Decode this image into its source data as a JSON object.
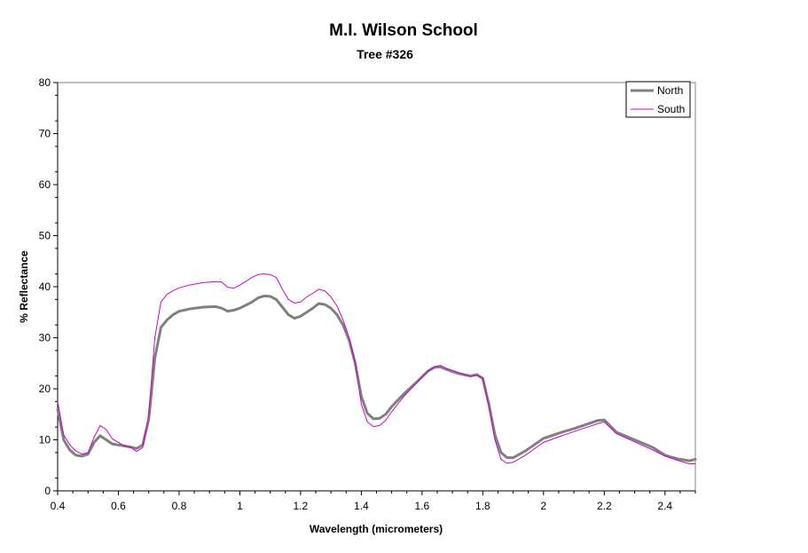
{
  "chart_data": {
    "type": "line",
    "title": "M.I. Wilson School",
    "subtitle": "Tree #326",
    "xlabel": "Wavelength (micrometers)",
    "ylabel": "% Reflectance",
    "xlim": [
      0.4,
      2.5
    ],
    "ylim": [
      0,
      80
    ],
    "x_ticks": [
      "0.4",
      "0.6",
      "0.8",
      "1",
      "1.2",
      "1.4",
      "1.6",
      "1.8",
      "2",
      "2.2",
      "2.4"
    ],
    "x_tick_values": [
      0.4,
      0.6,
      0.8,
      1.0,
      1.2,
      1.4,
      1.6,
      1.8,
      2.0,
      2.2,
      2.4
    ],
    "y_ticks": [
      "0",
      "10",
      "20",
      "30",
      "40",
      "50",
      "60",
      "70",
      "80"
    ],
    "y_tick_values": [
      0,
      10,
      20,
      30,
      40,
      50,
      60,
      70,
      80
    ],
    "grid": false,
    "legend_position": "top-right",
    "series": [
      {
        "name": "North",
        "color": "#808080",
        "x": [
          0.4,
          0.42,
          0.44,
          0.46,
          0.48,
          0.5,
          0.52,
          0.54,
          0.56,
          0.58,
          0.6,
          0.62,
          0.64,
          0.66,
          0.68,
          0.7,
          0.72,
          0.74,
          0.76,
          0.78,
          0.8,
          0.84,
          0.88,
          0.92,
          0.94,
          0.96,
          0.98,
          1.0,
          1.04,
          1.06,
          1.08,
          1.1,
          1.12,
          1.14,
          1.16,
          1.18,
          1.2,
          1.22,
          1.24,
          1.26,
          1.28,
          1.3,
          1.32,
          1.34,
          1.36,
          1.38,
          1.4,
          1.42,
          1.44,
          1.46,
          1.48,
          1.5,
          1.54,
          1.58,
          1.62,
          1.64,
          1.66,
          1.68,
          1.72,
          1.76,
          1.78,
          1.8,
          1.82,
          1.84,
          1.86,
          1.88,
          1.9,
          1.94,
          2.0,
          2.06,
          2.1,
          2.14,
          2.18,
          2.2,
          2.24,
          2.3,
          2.36,
          2.4,
          2.44,
          2.48,
          2.5
        ],
        "y": [
          16,
          10,
          8,
          7,
          6.8,
          7.2,
          9.5,
          10.8,
          10,
          9.2,
          9,
          8.8,
          8.6,
          8.3,
          9,
          14,
          26,
          32,
          33.5,
          34.5,
          35.2,
          35.7,
          36,
          36.1,
          35.8,
          35.2,
          35.4,
          35.8,
          37,
          37.8,
          38.2,
          38.1,
          37.5,
          36,
          34.5,
          33.8,
          34.2,
          35,
          35.8,
          36.7,
          36.5,
          35.8,
          34.5,
          32.5,
          29.5,
          25,
          18.5,
          15.2,
          14.1,
          14.2,
          15,
          16.5,
          19,
          21.2,
          23.5,
          24.2,
          24.3,
          23.8,
          23,
          22.5,
          22.8,
          22,
          17,
          11,
          7.5,
          6.5,
          6.5,
          7.8,
          10.3,
          11.5,
          12.2,
          13,
          13.8,
          13.9,
          11.5,
          10,
          8.5,
          7,
          6.3,
          5.9,
          6.2
        ]
      },
      {
        "name": "South",
        "color": "#cc00cc",
        "x": [
          0.4,
          0.42,
          0.44,
          0.46,
          0.48,
          0.5,
          0.52,
          0.54,
          0.56,
          0.58,
          0.6,
          0.62,
          0.64,
          0.66,
          0.68,
          0.7,
          0.72,
          0.74,
          0.76,
          0.78,
          0.8,
          0.84,
          0.88,
          0.92,
          0.94,
          0.96,
          0.98,
          1.0,
          1.04,
          1.06,
          1.08,
          1.1,
          1.12,
          1.14,
          1.16,
          1.18,
          1.2,
          1.22,
          1.24,
          1.26,
          1.28,
          1.3,
          1.32,
          1.34,
          1.36,
          1.38,
          1.4,
          1.42,
          1.44,
          1.46,
          1.48,
          1.5,
          1.54,
          1.58,
          1.62,
          1.64,
          1.66,
          1.68,
          1.72,
          1.76,
          1.78,
          1.8,
          1.82,
          1.84,
          1.86,
          1.88,
          1.9,
          1.94,
          2.0,
          2.06,
          2.1,
          2.14,
          2.18,
          2.2,
          2.24,
          2.3,
          2.36,
          2.4,
          2.44,
          2.48,
          2.5
        ],
        "y": [
          17.5,
          11,
          9,
          7.8,
          7.2,
          7.5,
          10.5,
          12.8,
          12,
          10.2,
          9.5,
          8.8,
          8.5,
          7.7,
          8.5,
          15,
          30,
          37,
          38.5,
          39.2,
          39.8,
          40.4,
          40.8,
          41,
          40.9,
          39.9,
          39.7,
          40.3,
          41.8,
          42.4,
          42.5,
          42.4,
          41.8,
          39.5,
          37.5,
          36.8,
          37,
          38,
          38.7,
          39.5,
          39.2,
          38,
          36.2,
          33.5,
          30,
          25,
          17,
          13.5,
          12.6,
          12.8,
          13.8,
          15.5,
          18.5,
          21,
          23.5,
          24.3,
          24.6,
          24,
          23.2,
          22.4,
          22.6,
          22.2,
          16.5,
          10,
          6.2,
          5.4,
          5.6,
          7,
          9.5,
          10.8,
          11.6,
          12.4,
          13.2,
          13.5,
          11.2,
          9.6,
          8,
          6.8,
          6,
          5.3,
          5.3
        ]
      }
    ]
  }
}
